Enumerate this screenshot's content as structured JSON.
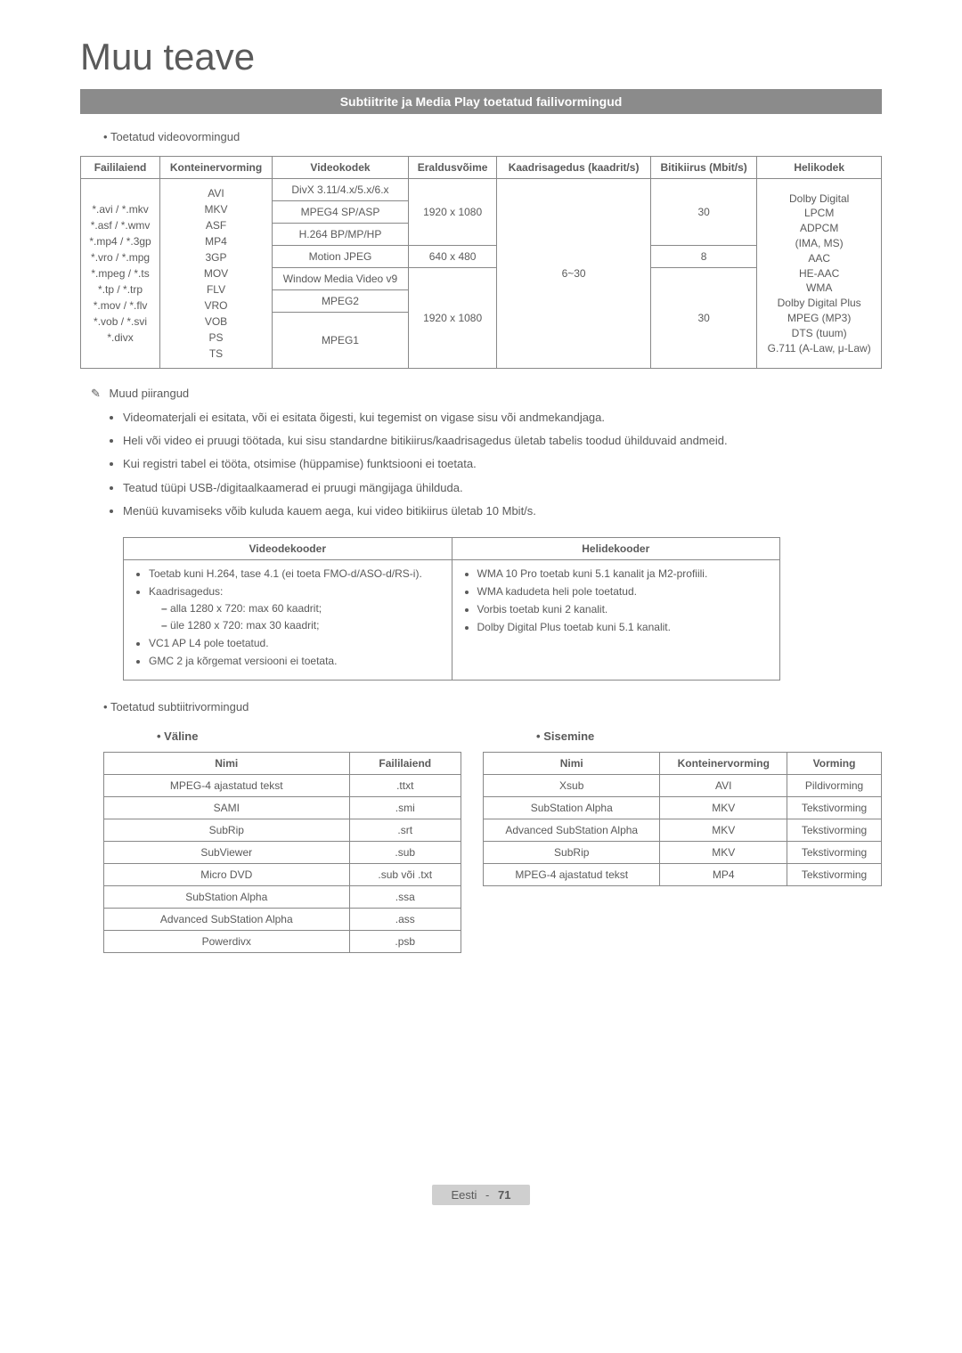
{
  "page_title": "Muu teave",
  "section_bar": "Subtiitrite ja Media Play toetatud failivormingud",
  "supported_video_label": "Toetatud videovormingud",
  "video_table": {
    "headers": [
      "Faililaiend",
      "Konteinervorming",
      "Videokodek",
      "Eraldusvõime",
      "Kaadrisagedus (kaadrit/s)",
      "Bitikiirus (Mbit/s)",
      "Helikodek"
    ],
    "exts": "*.avi / *.mkv\n*.asf / *.wmv\n*.mp4 / *.3gp\n*.vro / *.mpg\n*.mpeg / *.ts\n*.tp / *.trp\n*.mov / *.flv\n*.vob / *.svi\n*.divx",
    "containers": "AVI\nMKV\nASF\nMP4\n3GP\nMOV\nFLV\nVRO\nVOB\nPS\nTS",
    "codecs": [
      "DivX 3.11/4.x/5.x/6.x",
      "MPEG4 SP/ASP",
      "H.264 BP/MP/HP",
      "Motion JPEG",
      "Window Media Video v9",
      "MPEG2",
      "MPEG1"
    ],
    "res_1080": "1920 x 1080",
    "res_480": "640 x 480",
    "fps": "6~30",
    "bit_30": "30",
    "bit_8": "8",
    "helikodek": "Dolby Digital\nLPCM\nADPCM\n(IMA, MS)\nAAC\nHE-AAC\nWMA\nDolby Digital Plus\nMPEG (MP3)\nDTS (tuum)\nG.711 (A-Law, μ-Law)"
  },
  "other_restrictions": "Muud piirangud",
  "restrictions": [
    "Videomaterjali ei esitata, või ei esitata õigesti, kui tegemist on vigase sisu või andmekandjaga.",
    "Heli või video ei pruugi töötada, kui sisu standardne bitikiirus/kaadrisagedus ületab tabelis toodud ühilduvaid andmeid.",
    "Kui registri tabel ei tööta, otsimise (hüppamise) funktsiooni ei toetata.",
    "Teatud tüüpi USB-/digitaalkaamerad ei pruugi mängijaga ühilduda.",
    "Menüü kuvamiseks võib kuluda kauem aega, kui video bitikiirus ületab 10 Mbit/s."
  ],
  "decoder": {
    "video_header": "Videodekooder",
    "audio_header": "Helidekooder",
    "video": {
      "l1": "Toetab kuni H.264, tase 4.1 (ei toeta FMO-d/ASO-d/RS-i).",
      "l2": "Kaadrisagedus:",
      "l2a": "alla 1280 x 720: max 60 kaadrit;",
      "l2b": "üle 1280 x 720: max 30 kaadrit;",
      "l3": "VC1 AP L4 pole toetatud.",
      "l4": "GMC 2 ja kõrgemat versiooni ei toetata."
    },
    "audio": {
      "a1": "WMA 10 Pro toetab kuni 5.1 kanalit ja M2-profiili.",
      "a2": "WMA kadudeta heli pole toetatud.",
      "a3": "Vorbis toetab kuni 2 kanalit.",
      "a4": "Dolby Digital Plus toetab kuni 5.1 kanalit."
    }
  },
  "supported_subtitle_label": "Toetatud subtiitrivormingud",
  "external_label": "Väline",
  "internal_label": "Sisemine",
  "ext_table": {
    "headers": [
      "Nimi",
      "Faililaiend"
    ],
    "rows": [
      [
        "MPEG-4 ajastatud tekst",
        ".ttxt"
      ],
      [
        "SAMI",
        ".smi"
      ],
      [
        "SubRip",
        ".srt"
      ],
      [
        "SubViewer",
        ".sub"
      ],
      [
        "Micro DVD",
        ".sub või .txt"
      ],
      [
        "SubStation Alpha",
        ".ssa"
      ],
      [
        "Advanced SubStation Alpha",
        ".ass"
      ],
      [
        "Powerdivx",
        ".psb"
      ]
    ]
  },
  "int_table": {
    "headers": [
      "Nimi",
      "Konteinervorming",
      "Vorming"
    ],
    "rows": [
      [
        "Xsub",
        "AVI",
        "Pildivorming"
      ],
      [
        "SubStation Alpha",
        "MKV",
        "Tekstivorming"
      ],
      [
        "Advanced SubStation Alpha",
        "MKV",
        "Tekstivorming"
      ],
      [
        "SubRip",
        "MKV",
        "Tekstivorming"
      ],
      [
        "MPEG-4 ajastatud tekst",
        "MP4",
        "Tekstivorming"
      ]
    ]
  },
  "footer_lang": "Eesti",
  "footer_page": "71"
}
